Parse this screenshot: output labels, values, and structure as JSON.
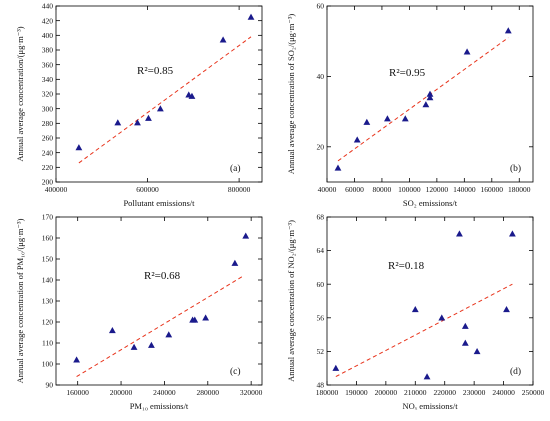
{
  "chart_data": [
    {
      "type": "scatter",
      "panel_label": "(a)",
      "annotation": "R²=0.85",
      "xlabel": "Pollutant emissions/t",
      "ylabel": "Annual average concentration/(μg·m⁻³)",
      "xlim": [
        400000,
        850000
      ],
      "ylim": [
        200,
        440
      ],
      "xticks": [
        400000,
        600000,
        800000
      ],
      "yticks": [
        200,
        220,
        240,
        260,
        280,
        300,
        320,
        340,
        360,
        380,
        400,
        420,
        440
      ],
      "points": [
        {
          "x": 450000,
          "y": 247
        },
        {
          "x": 535000,
          "y": 281
        },
        {
          "x": 578000,
          "y": 281
        },
        {
          "x": 602000,
          "y": 287
        },
        {
          "x": 628000,
          "y": 300
        },
        {
          "x": 690000,
          "y": 319
        },
        {
          "x": 697000,
          "y": 317
        },
        {
          "x": 765000,
          "y": 394
        },
        {
          "x": 826000,
          "y": 425
        }
      ],
      "fit": {
        "x": [
          450000,
          826000
        ],
        "y": [
          226,
          398
        ]
      },
      "grid": false
    },
    {
      "type": "scatter",
      "panel_label": "(b)",
      "annotation": "R²=0.95",
      "xlabel": "SO₂ emissions/t",
      "ylabel": "Annual average concentration of SO₂/(μg·m⁻³)",
      "xlim": [
        40000,
        190000
      ],
      "ylim": [
        10,
        60
      ],
      "xticks": [
        40000,
        60000,
        80000,
        100000,
        120000,
        140000,
        160000,
        180000
      ],
      "yticks": [
        20,
        40,
        60
      ],
      "points": [
        {
          "x": 48000,
          "y": 14
        },
        {
          "x": 62000,
          "y": 22
        },
        {
          "x": 69000,
          "y": 27
        },
        {
          "x": 84000,
          "y": 28
        },
        {
          "x": 97000,
          "y": 28
        },
        {
          "x": 112000,
          "y": 32
        },
        {
          "x": 115000,
          "y": 35
        },
        {
          "x": 115000,
          "y": 34
        },
        {
          "x": 142000,
          "y": 47
        },
        {
          "x": 172000,
          "y": 53
        }
      ],
      "fit": {
        "x": [
          48000,
          172000
        ],
        "y": [
          16,
          51
        ]
      },
      "grid": false
    },
    {
      "type": "scatter",
      "panel_label": "(c)",
      "annotation": "R²=0.68",
      "xlabel": "PM₁₀ emissions/t",
      "ylabel": "Annual average concentration of PM₁₀/(μg·m⁻³)",
      "xlim": [
        140000,
        330000
      ],
      "ylim": [
        90,
        170
      ],
      "xticks": [
        160000,
        200000,
        240000,
        280000,
        320000
      ],
      "yticks": [
        90,
        100,
        110,
        120,
        130,
        140,
        150,
        160,
        170
      ],
      "points": [
        {
          "x": 159000,
          "y": 102
        },
        {
          "x": 192000,
          "y": 116
        },
        {
          "x": 212000,
          "y": 108
        },
        {
          "x": 228000,
          "y": 109
        },
        {
          "x": 244000,
          "y": 114
        },
        {
          "x": 266000,
          "y": 121
        },
        {
          "x": 268000,
          "y": 121
        },
        {
          "x": 278000,
          "y": 122
        },
        {
          "x": 305000,
          "y": 148
        },
        {
          "x": 315000,
          "y": 161
        }
      ],
      "fit": {
        "x": [
          159000,
          313000
        ],
        "y": [
          94,
          142
        ]
      },
      "grid": false
    },
    {
      "type": "scatter",
      "panel_label": "(d)",
      "annotation": "R²=0.18",
      "xlabel": "NOₓ emissions/t",
      "ylabel": "Annual average concentration of NO₂/(μg·m⁻³)",
      "xlim": [
        180000,
        250000
      ],
      "ylim": [
        48,
        68
      ],
      "xticks": [
        180000,
        190000,
        200000,
        210000,
        220000,
        230000,
        240000,
        250000
      ],
      "yticks": [
        48,
        52,
        56,
        60,
        64,
        68
      ],
      "points": [
        {
          "x": 183000,
          "y": 50
        },
        {
          "x": 210000,
          "y": 57
        },
        {
          "x": 214000,
          "y": 49
        },
        {
          "x": 219000,
          "y": 56
        },
        {
          "x": 225000,
          "y": 66
        },
        {
          "x": 227000,
          "y": 55
        },
        {
          "x": 227000,
          "y": 53
        },
        {
          "x": 231000,
          "y": 52
        },
        {
          "x": 241000,
          "y": 57
        },
        {
          "x": 243000,
          "y": 66
        }
      ],
      "fit": {
        "x": [
          183000,
          243000
        ],
        "y": [
          49,
          60
        ]
      },
      "grid": false
    }
  ],
  "colors": {
    "marker": "#1a1a8c",
    "fit_line": "#e8341c",
    "axis": "#000000"
  }
}
